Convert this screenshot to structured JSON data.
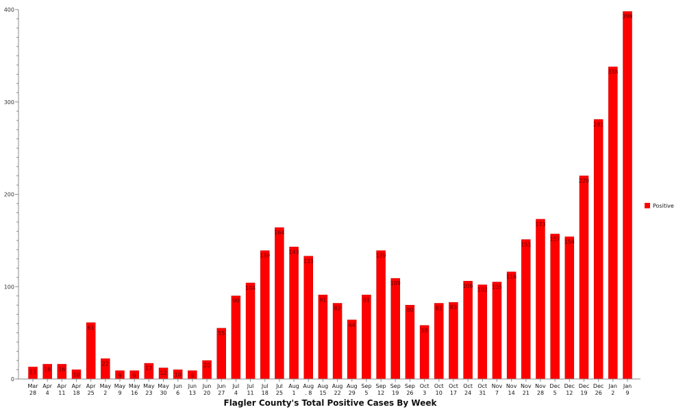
{
  "chart_data": {
    "type": "bar",
    "title": "",
    "xlabel": "Flagler County's Total Positive Cases By Week",
    "ylabel": "",
    "ylim": [
      0,
      400
    ],
    "yticks": [
      0,
      100,
      200,
      300,
      400
    ],
    "grid": false,
    "legend_position": "right",
    "categories": [
      [
        "Mar",
        "28"
      ],
      [
        "Apr",
        "4"
      ],
      [
        "Apr",
        "11"
      ],
      [
        "Apr",
        "18"
      ],
      [
        "Apr",
        "25"
      ],
      [
        "May",
        "2"
      ],
      [
        "May",
        "9"
      ],
      [
        "May",
        "16"
      ],
      [
        "May",
        "23"
      ],
      [
        "May",
        "30"
      ],
      [
        "Jun",
        "6"
      ],
      [
        "Jun",
        "13"
      ],
      [
        "Jun",
        "20"
      ],
      [
        "Jun",
        "27"
      ],
      [
        "Jul",
        "4"
      ],
      [
        "Jul",
        "11"
      ],
      [
        "Jul",
        "18"
      ],
      [
        "Jul",
        "25"
      ],
      [
        "Aug",
        "1"
      ],
      [
        "Aug",
        ". 8"
      ],
      [
        "Aug",
        "15"
      ],
      [
        "Aug",
        "22"
      ],
      [
        "Aug",
        "29"
      ],
      [
        "Sep",
        "5"
      ],
      [
        "Sep",
        "12"
      ],
      [
        "Sep",
        "19"
      ],
      [
        "Sep",
        "26"
      ],
      [
        "Oct",
        "3"
      ],
      [
        "Oct",
        "10"
      ],
      [
        "Oct",
        "17"
      ],
      [
        "Oct",
        "24"
      ],
      [
        "Oct",
        "31"
      ],
      [
        "Nov",
        "7"
      ],
      [
        "Nov",
        "14"
      ],
      [
        "Nov",
        "21"
      ],
      [
        "Nov",
        "28"
      ],
      [
        "Dec",
        "5"
      ],
      [
        "Dec",
        "12"
      ],
      [
        "Dec",
        "19"
      ],
      [
        "Dec",
        "26"
      ],
      [
        "Jan",
        "2"
      ],
      [
        "Jan",
        "9"
      ]
    ],
    "series": [
      {
        "name": "Positive",
        "color": "#ff0000",
        "values": [
          13,
          16,
          16,
          10,
          61,
          22,
          9,
          9,
          17,
          12,
          10,
          9,
          20,
          55,
          90,
          104,
          139,
          164,
          143,
          133,
          91,
          82,
          64,
          91,
          139,
          109,
          80,
          58,
          82,
          83,
          106,
          102,
          105,
          116,
          151,
          173,
          157,
          154,
          220,
          281,
          338,
          398
        ]
      }
    ]
  }
}
